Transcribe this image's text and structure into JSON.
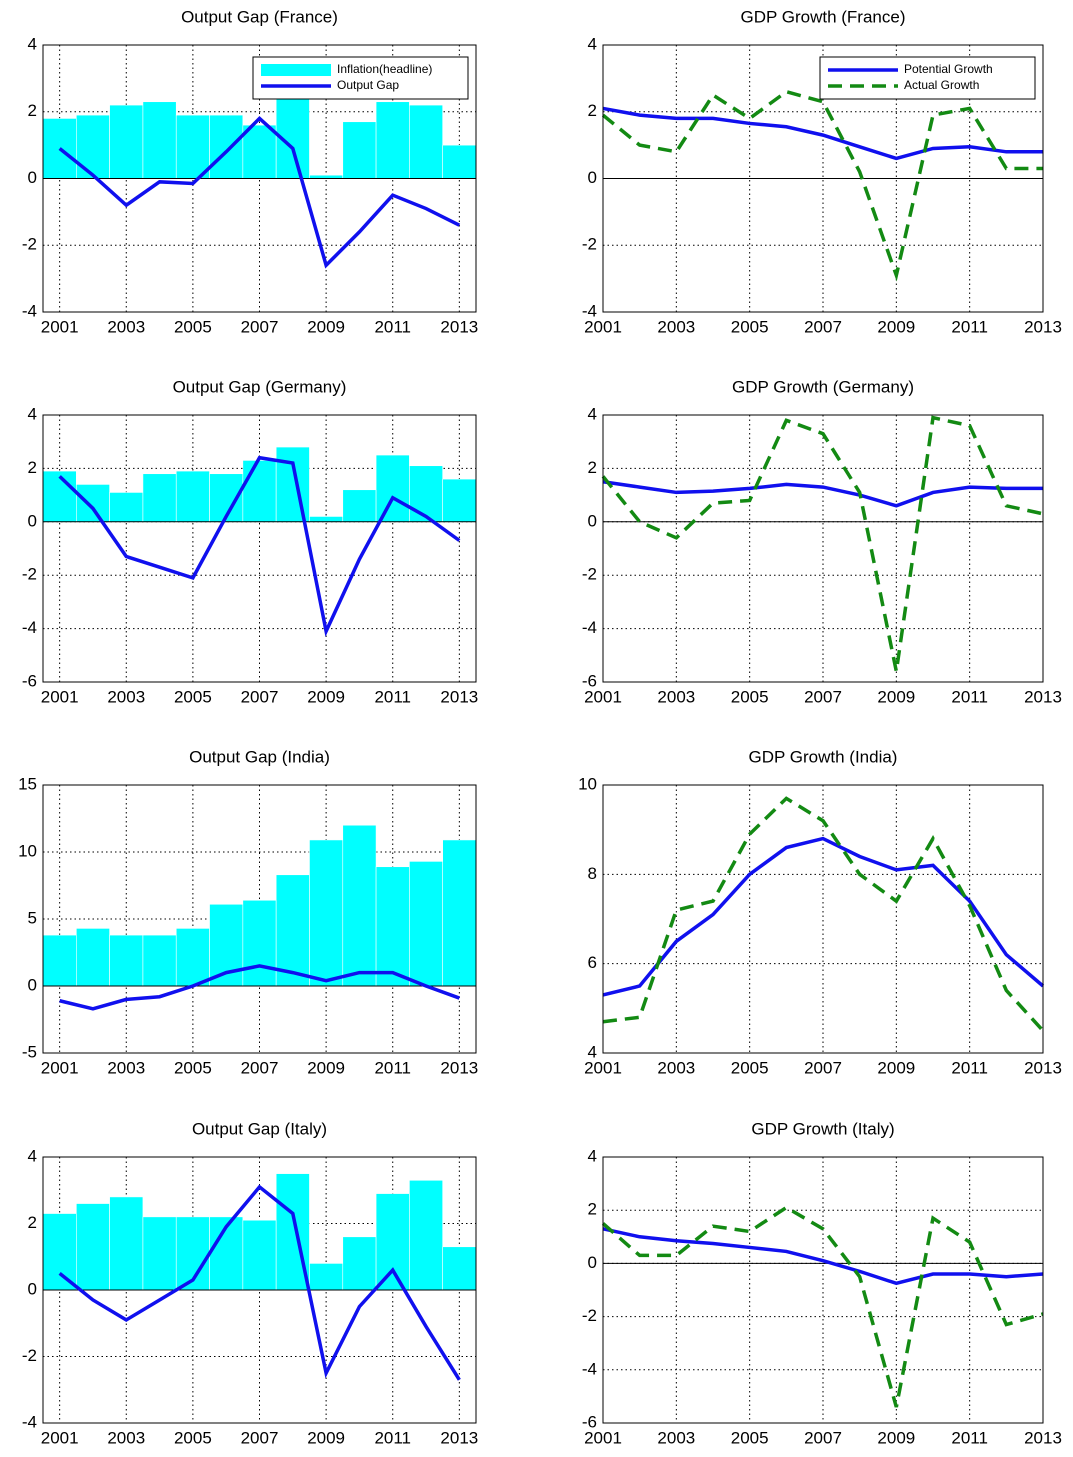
{
  "chart_data": [
    {
      "type": "combo",
      "title": "Output Gap (France)",
      "x": [
        2001,
        2002,
        2003,
        2004,
        2005,
        2006,
        2007,
        2008,
        2009,
        2010,
        2011,
        2012,
        2013
      ],
      "xlim": [
        2000.5,
        2013.5
      ],
      "xticks": [
        2001,
        2003,
        2005,
        2007,
        2009,
        2011,
        2013
      ],
      "ylim": [
        -4,
        4
      ],
      "yticks": [
        -4,
        -2,
        0,
        2,
        4
      ],
      "grid": true,
      "legend": "upper right",
      "series": [
        {
          "name": "Inflation(headline)",
          "type": "bar",
          "color": "#00ffff",
          "values": [
            1.8,
            1.9,
            2.2,
            2.3,
            1.9,
            1.9,
            1.6,
            3.2,
            0.1,
            1.7,
            2.3,
            2.2,
            1.0
          ]
        },
        {
          "name": "Output Gap",
          "type": "line",
          "color": "#1010ee",
          "values": [
            0.9,
            0.1,
            -0.8,
            -0.1,
            -0.15,
            0.8,
            1.8,
            0.9,
            -2.6,
            -1.6,
            -0.5,
            -0.9,
            -1.4
          ]
        }
      ]
    },
    {
      "type": "line",
      "title": "GDP Growth (France)",
      "x": [
        2001,
        2002,
        2003,
        2004,
        2005,
        2006,
        2007,
        2008,
        2009,
        2010,
        2011,
        2012,
        2013
      ],
      "xlim": [
        2001,
        2013
      ],
      "xticks": [
        2001,
        2003,
        2005,
        2007,
        2009,
        2011,
        2013
      ],
      "ylim": [
        -4,
        4
      ],
      "yticks": [
        -4,
        -2,
        0,
        2,
        4
      ],
      "grid": true,
      "legend": "upper right",
      "series": [
        {
          "name": "Potential Growth",
          "type": "line",
          "color": "#1010ee",
          "values": [
            2.1,
            1.9,
            1.8,
            1.8,
            1.65,
            1.55,
            1.3,
            0.95,
            0.6,
            0.9,
            0.95,
            0.8,
            0.8
          ]
        },
        {
          "name": "Actual Growth",
          "type": "line",
          "dashed": true,
          "color": "#138a13",
          "values": [
            1.9,
            1.0,
            0.8,
            2.5,
            1.8,
            2.6,
            2.3,
            0.2,
            -2.9,
            1.9,
            2.1,
            0.3,
            0.3
          ]
        }
      ]
    },
    {
      "type": "combo",
      "title": "Output Gap (Germany)",
      "x": [
        2001,
        2002,
        2003,
        2004,
        2005,
        2006,
        2007,
        2008,
        2009,
        2010,
        2011,
        2012,
        2013
      ],
      "xlim": [
        2000.5,
        2013.5
      ],
      "xticks": [
        2001,
        2003,
        2005,
        2007,
        2009,
        2011,
        2013
      ],
      "ylim": [
        -6,
        4
      ],
      "yticks": [
        -6,
        -4,
        -2,
        0,
        2,
        4
      ],
      "grid": true,
      "series": [
        {
          "type": "bar",
          "color": "#00ffff",
          "values": [
            1.9,
            1.4,
            1.1,
            1.8,
            1.9,
            1.8,
            2.3,
            2.8,
            0.2,
            1.2,
            2.5,
            2.1,
            1.6
          ]
        },
        {
          "type": "line",
          "color": "#1010ee",
          "values": [
            1.7,
            0.5,
            -1.3,
            -1.7,
            -2.1,
            0.2,
            2.4,
            2.2,
            -4.1,
            -1.4,
            0.9,
            0.2,
            -0.7
          ]
        }
      ]
    },
    {
      "type": "line",
      "title": "GDP Growth (Germany)",
      "x": [
        2001,
        2002,
        2003,
        2004,
        2005,
        2006,
        2007,
        2008,
        2009,
        2010,
        2011,
        2012,
        2013
      ],
      "xlim": [
        2001,
        2013
      ],
      "xticks": [
        2001,
        2003,
        2005,
        2007,
        2009,
        2011,
        2013
      ],
      "ylim": [
        -6,
        4
      ],
      "yticks": [
        -6,
        -4,
        -2,
        0,
        2,
        4
      ],
      "grid": true,
      "series": [
        {
          "type": "line",
          "color": "#1010ee",
          "values": [
            1.5,
            1.3,
            1.1,
            1.15,
            1.25,
            1.4,
            1.3,
            1.0,
            0.6,
            1.1,
            1.3,
            1.25,
            1.25
          ]
        },
        {
          "type": "line",
          "dashed": true,
          "color": "#138a13",
          "values": [
            1.7,
            0.0,
            -0.6,
            0.7,
            0.8,
            3.8,
            3.3,
            1.1,
            -5.6,
            3.9,
            3.6,
            0.6,
            0.3
          ]
        }
      ]
    },
    {
      "type": "combo",
      "title": "Output Gap (India)",
      "x": [
        2001,
        2002,
        2003,
        2004,
        2005,
        2006,
        2007,
        2008,
        2009,
        2010,
        2011,
        2012,
        2013
      ],
      "xlim": [
        2000.5,
        2013.5
      ],
      "xticks": [
        2001,
        2003,
        2005,
        2007,
        2009,
        2011,
        2013
      ],
      "ylim": [
        -5,
        15
      ],
      "yticks": [
        -5,
        0,
        5,
        10,
        15
      ],
      "grid": true,
      "series": [
        {
          "type": "bar",
          "color": "#00ffff",
          "values": [
            3.8,
            4.3,
            3.8,
            3.8,
            4.3,
            6.1,
            6.4,
            8.3,
            10.9,
            12.0,
            8.9,
            9.3,
            10.9
          ]
        },
        {
          "type": "line",
          "color": "#1010ee",
          "values": [
            -1.1,
            -1.7,
            -1.0,
            -0.8,
            0.0,
            1.0,
            1.5,
            1.0,
            0.4,
            1.0,
            1.0,
            0.0,
            -0.9
          ]
        }
      ]
    },
    {
      "type": "line",
      "title": "GDP Growth (India)",
      "x": [
        2001,
        2002,
        2003,
        2004,
        2005,
        2006,
        2007,
        2008,
        2009,
        2010,
        2011,
        2012,
        2013
      ],
      "xlim": [
        2001,
        2013
      ],
      "xticks": [
        2001,
        2003,
        2005,
        2007,
        2009,
        2011,
        2013
      ],
      "ylim": [
        4,
        10
      ],
      "yticks": [
        4,
        6,
        8,
        10
      ],
      "grid": true,
      "series": [
        {
          "type": "line",
          "color": "#1010ee",
          "values": [
            5.3,
            5.5,
            6.5,
            7.1,
            8.0,
            8.6,
            8.8,
            8.4,
            8.1,
            8.2,
            7.4,
            6.2,
            5.5
          ]
        },
        {
          "type": "line",
          "dashed": true,
          "color": "#138a13",
          "values": [
            4.7,
            4.8,
            7.2,
            7.4,
            8.9,
            9.7,
            9.2,
            8.0,
            7.4,
            8.8,
            7.3,
            5.4,
            4.5
          ]
        }
      ]
    },
    {
      "type": "combo",
      "title": "Output Gap (Italy)",
      "x": [
        2001,
        2002,
        2003,
        2004,
        2005,
        2006,
        2007,
        2008,
        2009,
        2010,
        2011,
        2012,
        2013
      ],
      "xlim": [
        2000.5,
        2013.5
      ],
      "xticks": [
        2001,
        2003,
        2005,
        2007,
        2009,
        2011,
        2013
      ],
      "ylim": [
        -4,
        4
      ],
      "yticks": [
        -4,
        -2,
        0,
        2,
        4
      ],
      "grid": true,
      "series": [
        {
          "type": "bar",
          "color": "#00ffff",
          "values": [
            2.3,
            2.6,
            2.8,
            2.2,
            2.2,
            2.2,
            2.1,
            3.5,
            0.8,
            1.6,
            2.9,
            3.3,
            1.3
          ]
        },
        {
          "type": "line",
          "color": "#1010ee",
          "values": [
            0.5,
            -0.3,
            -0.9,
            -0.3,
            0.3,
            1.9,
            3.1,
            2.3,
            -2.5,
            -0.5,
            0.6,
            -1.1,
            -2.7
          ]
        }
      ]
    },
    {
      "type": "line",
      "title": "GDP Growth (Italy)",
      "x": [
        2001,
        2002,
        2003,
        2004,
        2005,
        2006,
        2007,
        2008,
        2009,
        2010,
        2011,
        2012,
        2013
      ],
      "xlim": [
        2001,
        2013
      ],
      "xticks": [
        2001,
        2003,
        2005,
        2007,
        2009,
        2011,
        2013
      ],
      "ylim": [
        -6,
        4
      ],
      "yticks": [
        -6,
        -4,
        -2,
        0,
        2,
        4
      ],
      "grid": true,
      "series": [
        {
          "type": "line",
          "color": "#1010ee",
          "values": [
            1.3,
            1.0,
            0.85,
            0.75,
            0.6,
            0.45,
            0.1,
            -0.3,
            -0.75,
            -0.4,
            -0.4,
            -0.5,
            -0.4
          ]
        },
        {
          "type": "line",
          "dashed": true,
          "color": "#138a13",
          "values": [
            1.5,
            0.3,
            0.3,
            1.4,
            1.2,
            2.1,
            1.3,
            -0.5,
            -5.4,
            1.7,
            0.8,
            -2.3,
            -1.9
          ]
        }
      ]
    }
  ]
}
